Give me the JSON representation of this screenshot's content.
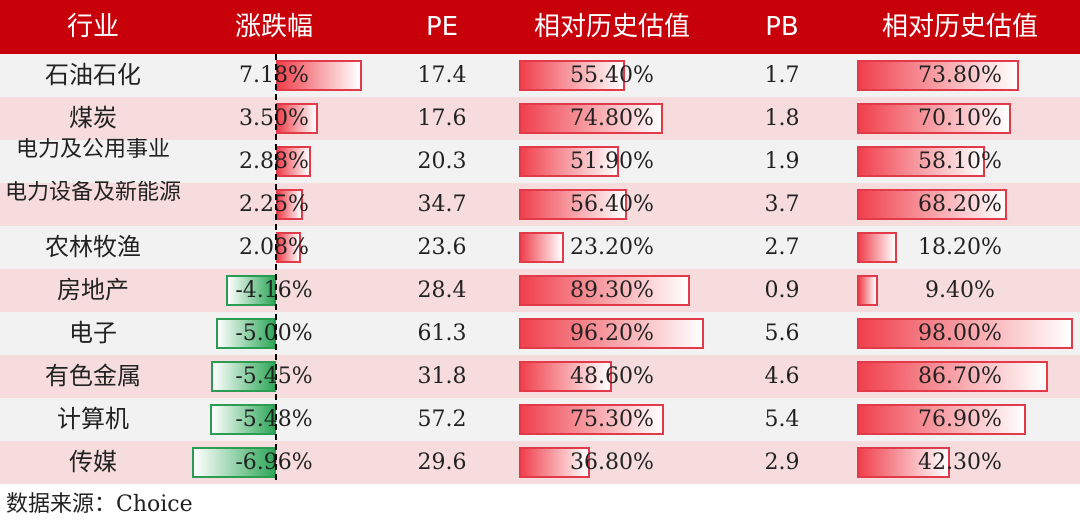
{
  "headers": {
    "industry": "行业",
    "change": "涨跌幅",
    "pe": "PE",
    "pe_rel": "相对历史估值",
    "pb": "PB",
    "pb_rel": "相对历史估值"
  },
  "rows": [
    {
      "industry": "石油石化",
      "change": "7.18%",
      "change_value": 7.18,
      "pe": "17.4",
      "pe_rel": "55.40%",
      "pe_rel_value": 55.4,
      "pb": "1.7",
      "pb_rel": "73.80%",
      "pb_rel_value": 73.8
    },
    {
      "industry": "煤炭",
      "change": "3.50%",
      "change_value": 3.5,
      "pe": "17.6",
      "pe_rel": "74.80%",
      "pe_rel_value": 74.8,
      "pb": "1.8",
      "pb_rel": "70.10%",
      "pb_rel_value": 70.1
    },
    {
      "industry": "电力及公用事业",
      "change": "2.88%",
      "change_value": 2.88,
      "pe": "20.3",
      "pe_rel": "51.90%",
      "pe_rel_value": 51.9,
      "pb": "1.9",
      "pb_rel": "58.10%",
      "pb_rel_value": 58.1
    },
    {
      "industry": "电力设备及新能源",
      "change": "2.25%",
      "change_value": 2.25,
      "pe": "34.7",
      "pe_rel": "56.40%",
      "pe_rel_value": 56.4,
      "pb": "3.7",
      "pb_rel": "68.20%",
      "pb_rel_value": 68.2
    },
    {
      "industry": "农林牧渔",
      "change": "2.08%",
      "change_value": 2.08,
      "pe": "23.6",
      "pe_rel": "23.20%",
      "pe_rel_value": 23.2,
      "pb": "2.7",
      "pb_rel": "18.20%",
      "pb_rel_value": 18.2
    },
    {
      "industry": "房地产",
      "change": "-4.16%",
      "change_value": -4.16,
      "pe": "28.4",
      "pe_rel": "89.30%",
      "pe_rel_value": 89.3,
      "pb": "0.9",
      "pb_rel": "9.40%",
      "pb_rel_value": 9.4
    },
    {
      "industry": "电子",
      "change": "-5.00%",
      "change_value": -5.0,
      "pe": "61.3",
      "pe_rel": "96.20%",
      "pe_rel_value": 96.2,
      "pb": "5.6",
      "pb_rel": "98.00%",
      "pb_rel_value": 98.0
    },
    {
      "industry": "有色金属",
      "change": "-5.45%",
      "change_value": -5.45,
      "pe": "31.8",
      "pe_rel": "48.60%",
      "pe_rel_value": 48.6,
      "pb": "4.6",
      "pb_rel": "86.70%",
      "pb_rel_value": 86.7
    },
    {
      "industry": "计算机",
      "change": "-5.48%",
      "change_value": -5.48,
      "pe": "57.2",
      "pe_rel": "75.30%",
      "pe_rel_value": 75.3,
      "pb": "5.4",
      "pb_rel": "76.90%",
      "pb_rel_value": 76.9
    },
    {
      "industry": "传媒",
      "change": "-6.96%",
      "change_value": -6.96,
      "pe": "29.6",
      "pe_rel": "36.80%",
      "pe_rel_value": 36.8,
      "pb": "2.9",
      "pb_rel": "42.30%",
      "pb_rel_value": 42.3
    }
  ],
  "source": "数据来源：Choice",
  "colors": {
    "header_bg": "#c8000a",
    "positive_bar": "#e23a48",
    "negative_bar": "#2a9d52",
    "row_odd": "#f2f2f2",
    "row_even": "#f6dcdc"
  }
}
